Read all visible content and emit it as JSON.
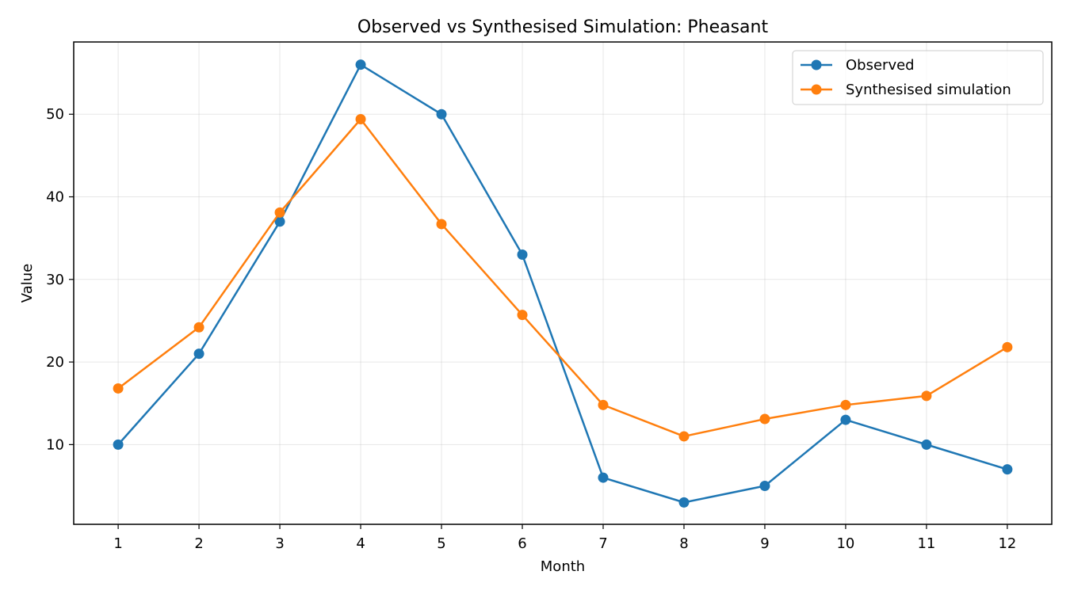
{
  "chart_data": {
    "type": "line",
    "title": "Observed vs Synthesised Simulation: Pheasant",
    "xlabel": "Month",
    "ylabel": "Value",
    "x": [
      1,
      2,
      3,
      4,
      5,
      6,
      7,
      8,
      9,
      10,
      11,
      12
    ],
    "xlim": [
      0.45,
      12.55
    ],
    "ylim": [
      0.35,
      58.75
    ],
    "yticks": [
      10,
      20,
      30,
      40,
      50
    ],
    "grid": true,
    "legend_position": "top-right",
    "series": [
      {
        "name": "Observed",
        "color": "#1f77b4",
        "marker": "circle",
        "values": [
          10,
          21,
          37,
          56,
          50,
          33,
          6,
          3,
          5,
          13,
          10,
          7
        ]
      },
      {
        "name": "Synthesised simulation",
        "color": "#ff7f0e",
        "marker": "circle",
        "values": [
          16.8,
          24.2,
          38.1,
          49.4,
          36.7,
          25.7,
          14.8,
          11,
          13.1,
          14.8,
          15.9,
          21.8
        ]
      }
    ]
  }
}
